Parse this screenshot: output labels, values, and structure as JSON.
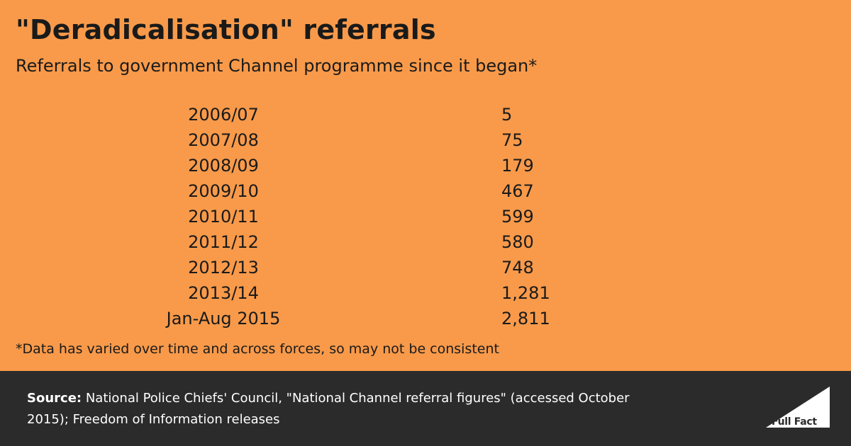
{
  "header": {
    "title": "\"Deradicalisation\" referrals",
    "subtitle": "Referrals to government Channel programme since it began*"
  },
  "chart_data": {
    "type": "table",
    "title": "\"Deradicalisation\" referrals",
    "subtitle": "Referrals to government Channel programme since it began*",
    "rows": [
      {
        "period": "2006/07",
        "value": "5"
      },
      {
        "period": "2007/08",
        "value": "75"
      },
      {
        "period": "2008/09",
        "value": "179"
      },
      {
        "period": "2009/10",
        "value": "467"
      },
      {
        "period": "2010/11",
        "value": "599"
      },
      {
        "period": "2011/12",
        "value": "580"
      },
      {
        "period": "2012/13",
        "value": "748"
      },
      {
        "period": "2013/14",
        "value": "1,281"
      },
      {
        "period": "Jan-Aug 2015",
        "value": "2,811"
      }
    ],
    "footnote": "*Data has varied over time and across forces, so may not be consistent"
  },
  "footer": {
    "source_label": "Source:",
    "source_text": "National Police Chiefs' Council, \"National Channel referral figures\" (accessed October 2015); Freedom of Information releases",
    "logo_text": "Full Fact"
  },
  "colors": {
    "background": "#f89a4a",
    "footer": "#2b2b2b",
    "text": "#1a1a1a",
    "footer_text": "#ffffff"
  }
}
